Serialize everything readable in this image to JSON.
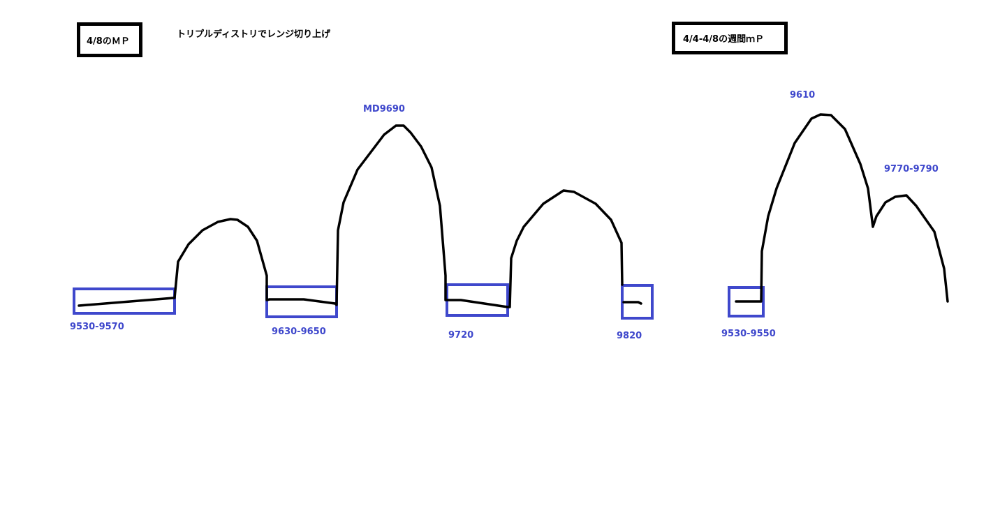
{
  "left_panel": {
    "title": "4/8のＭＰ",
    "note": "トリプルディストリでレンジ切り上げ",
    "labels": [
      "9530-9570",
      "9630-9650",
      "MD9690",
      "9720",
      "9820"
    ]
  },
  "right_panel": {
    "title": "4/4-4/8の週間ｍＰ",
    "labels": [
      "9530-9550",
      "9610",
      "9770-9790"
    ]
  },
  "colors": {
    "stroke": "#000000",
    "highlight": "#3f48cc"
  }
}
